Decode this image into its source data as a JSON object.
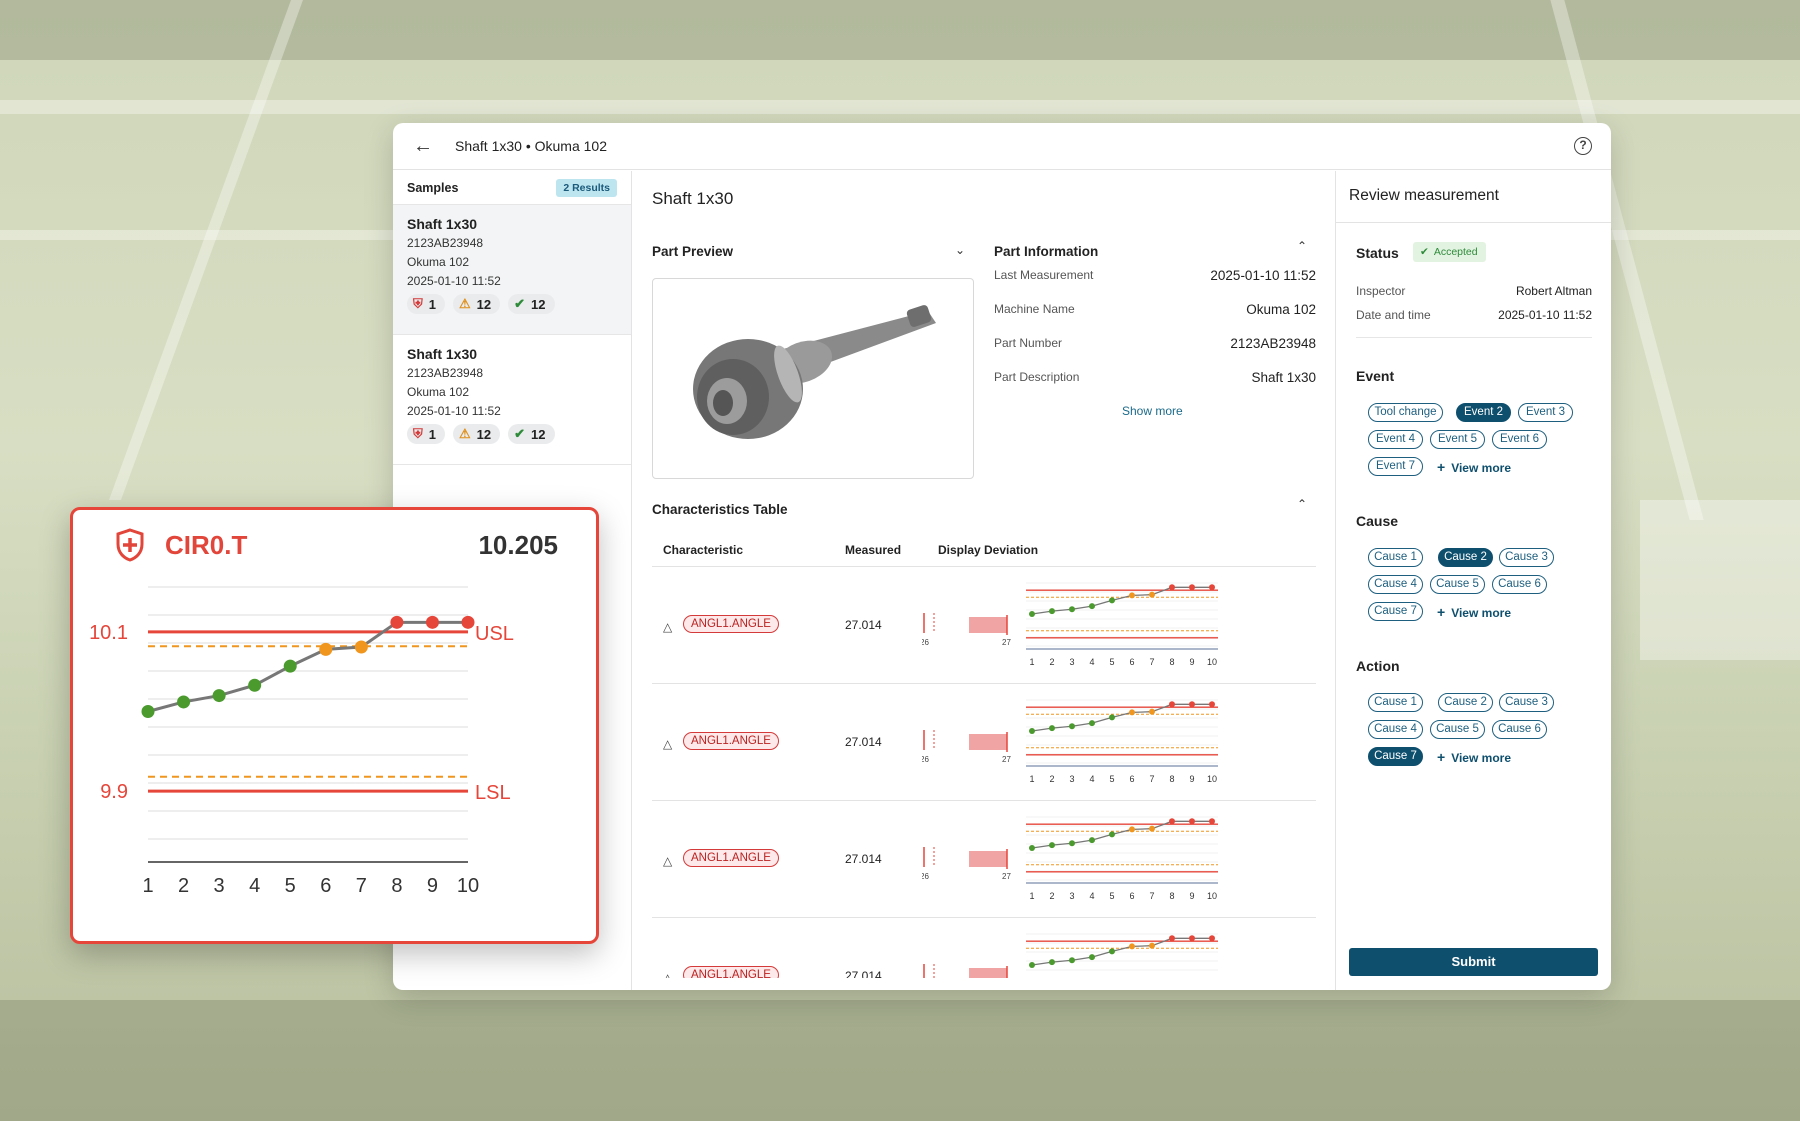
{
  "window": {
    "title": "Shaft 1x30 • Okuma 102"
  },
  "samples": {
    "header": "Samples",
    "badge": "2 Results",
    "items": [
      {
        "name": "Shaft 1x30",
        "part": "2123AB23948",
        "machine": "Okuma 102",
        "date": "2025-01-10 11:52",
        "errors": "1",
        "warnings": "12",
        "ok": "12"
      },
      {
        "name": "Shaft 1x30",
        "part": "2123AB23948",
        "machine": "Okuma 102",
        "date": "2025-01-10 11:52",
        "errors": "1",
        "warnings": "12",
        "ok": "12"
      }
    ]
  },
  "main": {
    "title": "Shaft 1x30",
    "preview_title": "Part Preview",
    "info_title": "Part Information",
    "info": [
      {
        "k": "Last Measurement",
        "v": "2025-01-10 11:52"
      },
      {
        "k": "Machine Name",
        "v": "Okuma 102"
      },
      {
        "k": "Part Number",
        "v": "2123AB23948"
      },
      {
        "k": "Part Description",
        "v": "Shaft 1x30"
      }
    ],
    "show_more": "Show more",
    "table_title": "Characteristics Table",
    "columns": [
      "Characteristic",
      "Measured",
      "Display Deviation"
    ],
    "rows": [
      {
        "tag": "ANGL1.ANGLE",
        "measured": "27.014"
      },
      {
        "tag": "ANGL1.ANGLE",
        "measured": "27.014"
      },
      {
        "tag": "ANGL1.ANGLE",
        "measured": "27.014"
      },
      {
        "tag": "ANGL1.ANGLE",
        "measured": "27.014"
      }
    ],
    "dev_labels": [
      "26",
      "27"
    ],
    "x_labels": [
      "1",
      "2",
      "3",
      "4",
      "5",
      "6",
      "7",
      "8",
      "9",
      "10"
    ]
  },
  "review": {
    "title": "Review measurement",
    "status_label": "Status",
    "status": "Accepted",
    "inspector_label": "Inspector",
    "inspector": "Robert Altman",
    "date_label": "Date and time",
    "date": "2025-01-10 11:52",
    "event_label": "Event",
    "events": [
      "Tool change",
      "Event 2",
      "Event 3",
      "Event 4",
      "Event 5",
      "Event 6",
      "Event 7"
    ],
    "cause_label": "Cause",
    "causes": [
      "Cause 1",
      "Cause 2",
      "Cause 3",
      "Cause 4",
      "Cause 5",
      "Cause 6",
      "Cause 7"
    ],
    "action_label": "Action",
    "actions": [
      "Cause 1",
      "Cause 2",
      "Cause 3",
      "Cause 4",
      "Cause 5",
      "Cause 6",
      "Cause 7"
    ],
    "view_more": "View more",
    "submit": "Submit"
  },
  "card": {
    "name": "CIR0.T",
    "value": "10.205",
    "usl_value": "10.1",
    "lsl_value": "9.9",
    "usl": "USL",
    "lsl": "LSL"
  },
  "chart_data": {
    "type": "line",
    "x": [
      1,
      2,
      3,
      4,
      5,
      6,
      7,
      8,
      9,
      10
    ],
    "series": [
      {
        "values": [
          10.0,
          10.012,
          10.02,
          10.033,
          10.057,
          10.078,
          10.081,
          10.112,
          10.112,
          10.112
        ]
      }
    ],
    "point_status": [
      "ok",
      "ok",
      "ok",
      "ok",
      "ok",
      "warn",
      "warn",
      "out",
      "out",
      "out"
    ],
    "usl": 10.1,
    "lsl": 9.9,
    "ylim": [
      9.87,
      10.13
    ],
    "colors": {
      "ok": "#4a9a2e",
      "warn": "#f0961e",
      "out": "#e6463a",
      "line": "#777777",
      "limit": "#e6463a"
    }
  }
}
